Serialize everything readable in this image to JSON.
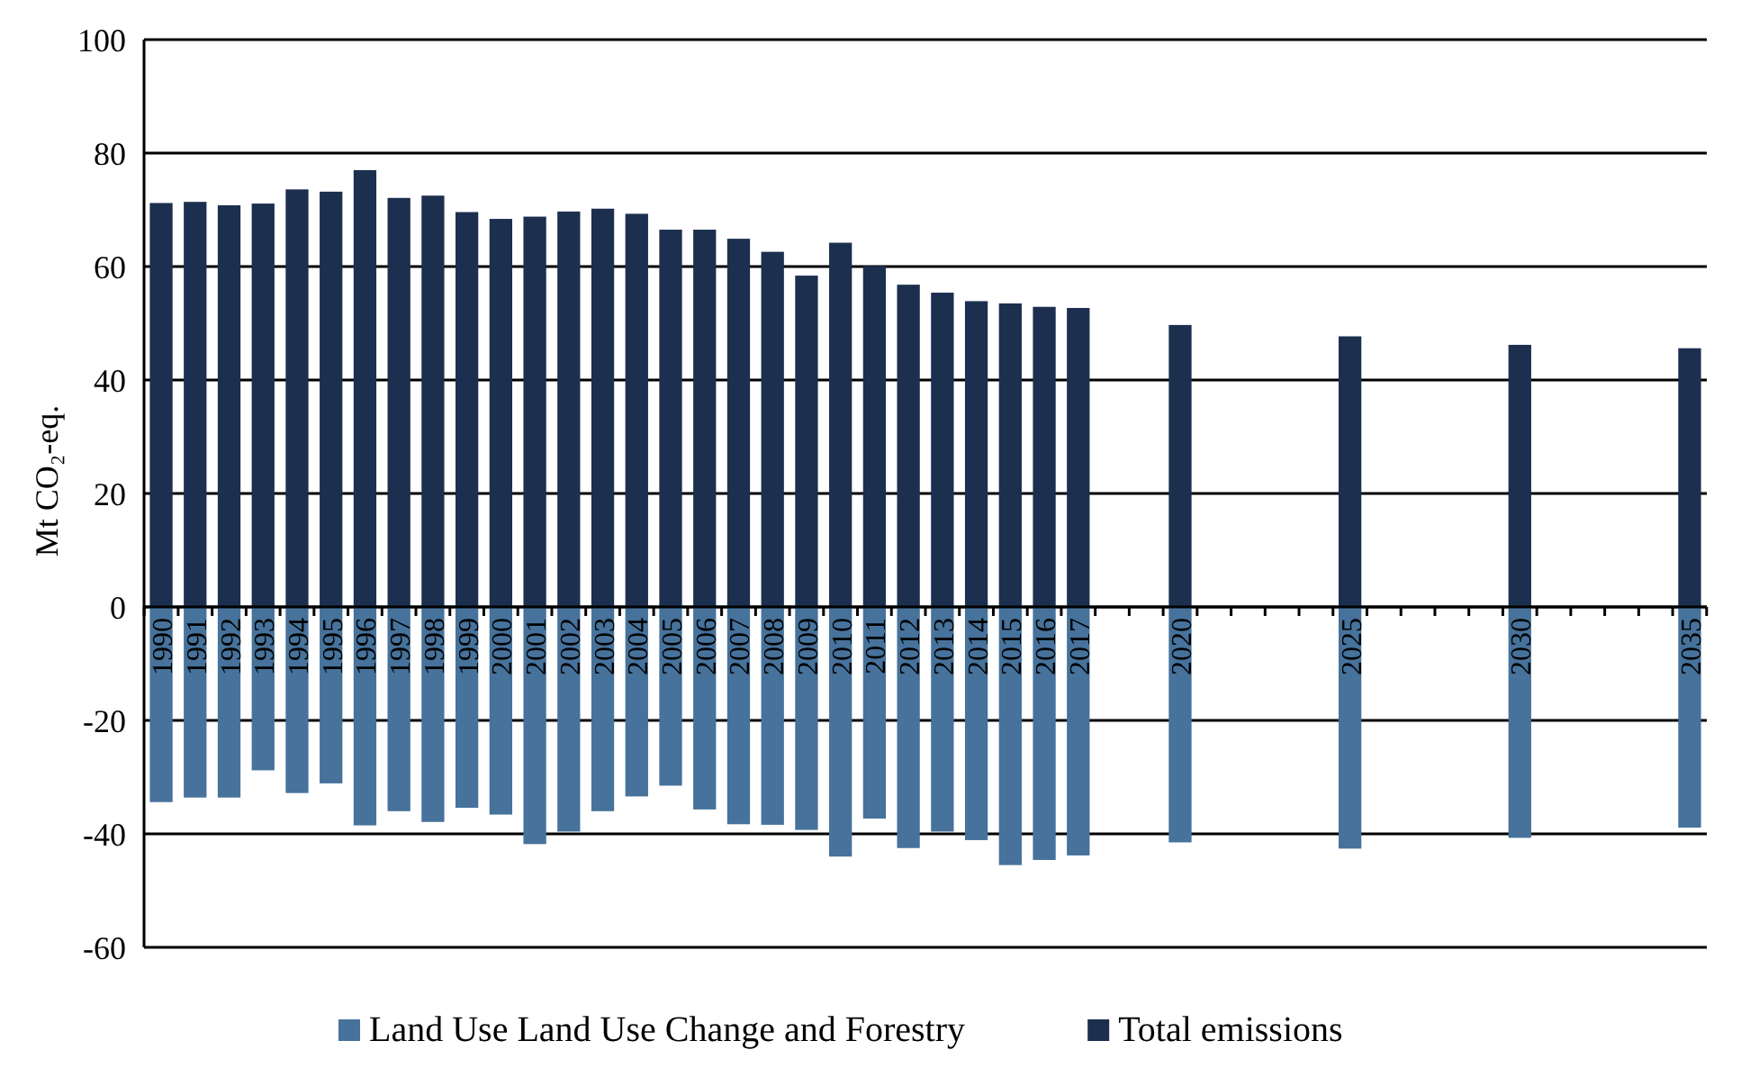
{
  "chart_data": {
    "type": "bar",
    "ylabel": "Mt CO₂-eq.",
    "categories": [
      "1990",
      "1991",
      "1992",
      "1993",
      "1994",
      "1995",
      "1996",
      "1997",
      "1998",
      "1999",
      "2000",
      "2001",
      "2002",
      "2003",
      "2004",
      "2005",
      "2006",
      "2007",
      "2008",
      "2009",
      "2010",
      "2011",
      "2012",
      "2013",
      "2014",
      "2015",
      "2016",
      "2017",
      null,
      null,
      "2020",
      null,
      null,
      null,
      null,
      "2025",
      null,
      null,
      null,
      null,
      "2030",
      null,
      null,
      null,
      null,
      "2035"
    ],
    "series": [
      {
        "name": "Land Use Land Use Change and Forestry",
        "color": "#46729b",
        "values": [
          -34.4,
          -33.6,
          -33.6,
          -28.8,
          -32.8,
          -31.1,
          -38.5,
          -36,
          -37.9,
          -35.4,
          -36.6,
          -41.8,
          -39.6,
          -36,
          -33.4,
          -31.5,
          -35.7,
          -38.3,
          -38.4,
          -39.3,
          -44,
          -37.3,
          -42.5,
          -39.6,
          -41.1,
          -45.5,
          -44.6,
          -43.8,
          null,
          null,
          -41.5,
          null,
          null,
          null,
          null,
          -42.6,
          null,
          null,
          null,
          null,
          -40.7,
          null,
          null,
          null,
          null,
          -38.9
        ]
      },
      {
        "name": "Total emissions",
        "color": "#1c2f4f",
        "values": [
          71.2,
          71.4,
          70.8,
          71.1,
          73.6,
          73.2,
          77,
          72.1,
          72.5,
          69.6,
          68.4,
          68.8,
          69.7,
          70.2,
          69.3,
          66.5,
          66.5,
          64.9,
          62.6,
          58.4,
          64.2,
          60.1,
          56.8,
          55.4,
          53.9,
          53.5,
          52.9,
          52.7,
          null,
          null,
          49.7,
          null,
          null,
          null,
          null,
          47.7,
          null,
          null,
          null,
          null,
          46.2,
          null,
          null,
          null,
          null,
          45.6
        ]
      }
    ],
    "stacked": true,
    "ylim": [
      -60,
      100
    ],
    "yticks": [
      -60,
      -40,
      -20,
      0,
      20,
      40,
      60,
      80,
      100
    ],
    "grid": "y",
    "legend": "bottom"
  }
}
